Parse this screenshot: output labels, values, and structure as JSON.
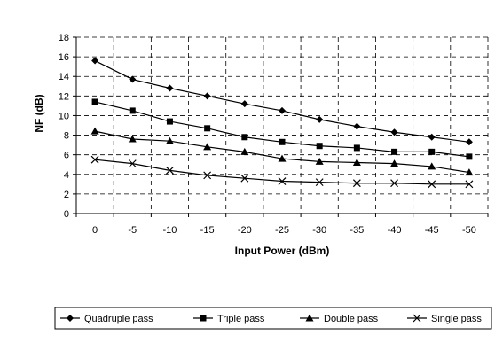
{
  "chart_data": {
    "type": "line",
    "title": "",
    "xlabel": "Input Power (dBm)",
    "ylabel": "NF (dB)",
    "categories": [
      "0",
      "-5",
      "-10",
      "-15",
      "-20",
      "-25",
      "-30",
      "-35",
      "-40",
      "-45",
      "-50"
    ],
    "ylim": [
      0,
      18
    ],
    "ytick_step": 2,
    "grid": "horizontal dashed",
    "legend_position": "bottom",
    "series": [
      {
        "name": "Quadruple pass",
        "marker": "diamond",
        "values": [
          15.6,
          13.7,
          12.8,
          12.0,
          11.2,
          10.5,
          9.6,
          8.9,
          8.3,
          7.8,
          7.3
        ]
      },
      {
        "name": "Triple pass",
        "marker": "square",
        "values": [
          11.4,
          10.5,
          9.4,
          8.7,
          7.8,
          7.3,
          6.9,
          6.7,
          6.3,
          6.3,
          5.8
        ]
      },
      {
        "name": "Double pass",
        "marker": "triangle",
        "values": [
          8.4,
          7.6,
          7.4,
          6.8,
          6.3,
          5.6,
          5.3,
          5.2,
          5.1,
          4.8,
          4.2
        ]
      },
      {
        "name": "Single pass",
        "marker": "x",
        "values": [
          5.5,
          5.1,
          4.4,
          3.9,
          3.6,
          3.3,
          3.2,
          3.1,
          3.1,
          3.0,
          3.0
        ]
      }
    ]
  }
}
